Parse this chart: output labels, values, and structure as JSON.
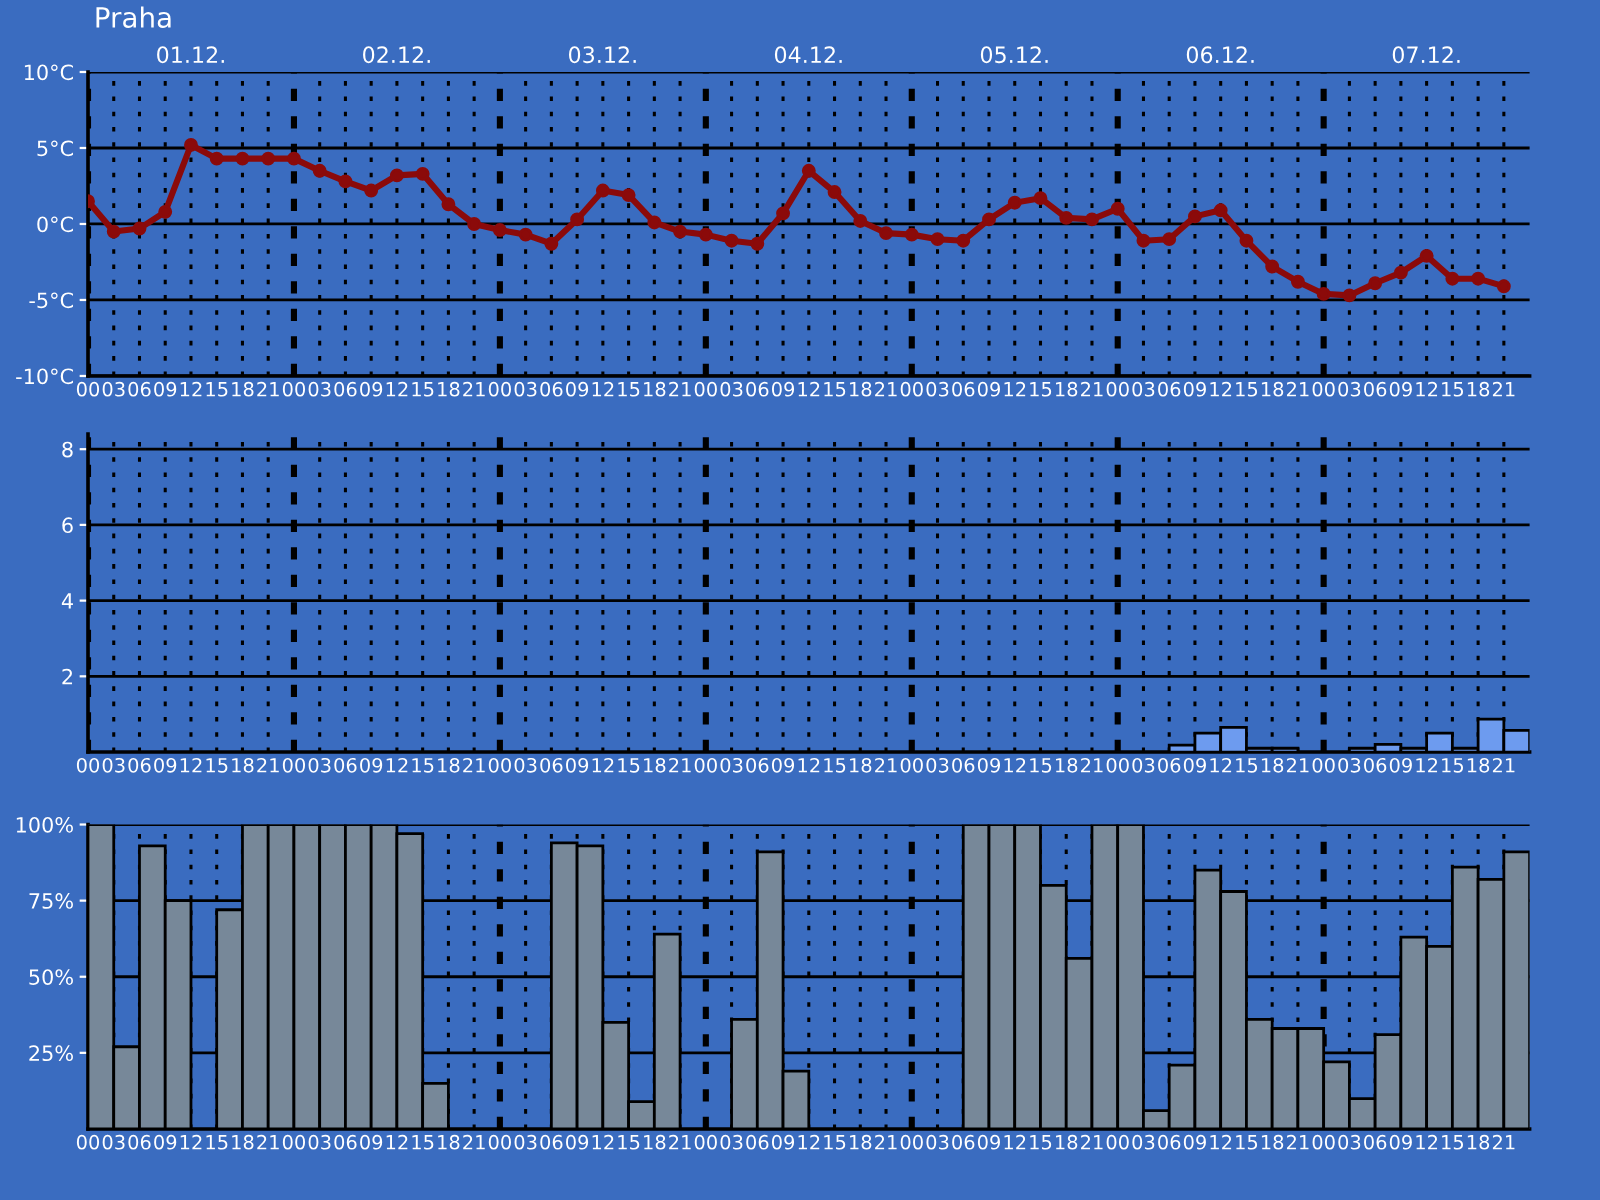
{
  "chart_data": [
    {
      "type": "line",
      "title": "Praha",
      "x": [
        0,
        3,
        6,
        9,
        12,
        15,
        18,
        21,
        24,
        27,
        30,
        33,
        36,
        39,
        42,
        45,
        48,
        51,
        54,
        57,
        60,
        63,
        66,
        69,
        72,
        75,
        78,
        81,
        84,
        87,
        90,
        93,
        96,
        99,
        102,
        105,
        108,
        111,
        114,
        117,
        120,
        123,
        126,
        129,
        132,
        135,
        138,
        141,
        144,
        147,
        150,
        153,
        156,
        159,
        162,
        165
      ],
      "series": [
        {
          "color": "#8b0a0a",
          "values": [
            1.5,
            -0.5,
            -0.3,
            0.8,
            5.2,
            4.3,
            4.3,
            4.3,
            4.3,
            3.5,
            2.8,
            2.2,
            3.2,
            3.3,
            1.3,
            0.0,
            -0.4,
            -0.7,
            -1.3,
            0.3,
            2.2,
            1.9,
            0.1,
            -0.5,
            -0.7,
            -1.1,
            -1.3,
            0.7,
            3.5,
            2.1,
            0.2,
            -0.6,
            -0.7,
            -1.0,
            -1.1,
            0.3,
            1.4,
            1.7,
            0.4,
            0.3,
            1.0,
            -1.1,
            -1.0,
            0.5,
            0.9,
            -1.1,
            -2.8,
            -3.8,
            -4.6,
            -4.7,
            -3.9,
            -3.2,
            -2.1,
            -3.6,
            -3.6,
            -4.1
          ]
        }
      ],
      "marker": "circle",
      "line_style": "solid",
      "grid": true,
      "xlim": [
        0,
        168
      ],
      "xticks": [
        {
          "value": 0,
          "label": "00"
        },
        {
          "value": 3,
          "label": "03"
        },
        {
          "value": 6,
          "label": "06"
        },
        {
          "value": 9,
          "label": "09"
        },
        {
          "value": 12,
          "label": "12"
        },
        {
          "value": 15,
          "label": "15"
        },
        {
          "value": 18,
          "label": "18"
        },
        {
          "value": 21,
          "label": "21"
        },
        {
          "value": 24,
          "label": "00"
        },
        {
          "value": 27,
          "label": "03"
        },
        {
          "value": 30,
          "label": "06"
        },
        {
          "value": 33,
          "label": "09"
        },
        {
          "value": 36,
          "label": "12"
        },
        {
          "value": 39,
          "label": "15"
        },
        {
          "value": 42,
          "label": "18"
        },
        {
          "value": 45,
          "label": "21"
        },
        {
          "value": 48,
          "label": "00"
        },
        {
          "value": 51,
          "label": "03"
        },
        {
          "value": 54,
          "label": "06"
        },
        {
          "value": 57,
          "label": "09"
        },
        {
          "value": 60,
          "label": "12"
        },
        {
          "value": 63,
          "label": "15"
        },
        {
          "value": 66,
          "label": "18"
        },
        {
          "value": 69,
          "label": "21"
        },
        {
          "value": 72,
          "label": "00"
        },
        {
          "value": 75,
          "label": "03"
        },
        {
          "value": 78,
          "label": "06"
        },
        {
          "value": 81,
          "label": "09"
        },
        {
          "value": 84,
          "label": "12"
        },
        {
          "value": 87,
          "label": "15"
        },
        {
          "value": 90,
          "label": "18"
        },
        {
          "value": 93,
          "label": "21"
        },
        {
          "value": 96,
          "label": "00"
        },
        {
          "value": 99,
          "label": "03"
        },
        {
          "value": 102,
          "label": "06"
        },
        {
          "value": 105,
          "label": "09"
        },
        {
          "value": 108,
          "label": "12"
        },
        {
          "value": 111,
          "label": "15"
        },
        {
          "value": 114,
          "label": "18"
        },
        {
          "value": 117,
          "label": "21"
        },
        {
          "value": 120,
          "label": "00"
        },
        {
          "value": 123,
          "label": "03"
        },
        {
          "value": 126,
          "label": "06"
        },
        {
          "value": 129,
          "label": "09"
        },
        {
          "value": 132,
          "label": "12"
        },
        {
          "value": 135,
          "label": "15"
        },
        {
          "value": 138,
          "label": "18"
        },
        {
          "value": 141,
          "label": "21"
        },
        {
          "value": 144,
          "label": "00"
        },
        {
          "value": 147,
          "label": "03"
        },
        {
          "value": 150,
          "label": "06"
        },
        {
          "value": 153,
          "label": "09"
        },
        {
          "value": 156,
          "label": "12"
        },
        {
          "value": 159,
          "label": "15"
        },
        {
          "value": 162,
          "label": "18"
        },
        {
          "value": 165,
          "label": "21"
        }
      ],
      "annotations": [
        "01.12.",
        "02.12.",
        "03.12.",
        "04.12.",
        "05.12.",
        "06.12.",
        "07.12."
      ],
      "ylim": [
        -10,
        10
      ],
      "yticks": [
        {
          "value": -10,
          "label": "-10°C"
        },
        {
          "value": -5,
          "label": "-5°C"
        },
        {
          "value": 0,
          "label": "0°C"
        },
        {
          "value": 5,
          "label": "5°C"
        },
        {
          "value": 10,
          "label": "10°C"
        }
      ]
    },
    {
      "type": "bar",
      "x": [
        1.5,
        4.5,
        7.5,
        10.5,
        13.5,
        16.5,
        19.5,
        22.5,
        25.5,
        28.5,
        31.5,
        34.5,
        37.5,
        40.5,
        43.5,
        46.5,
        49.5,
        52.5,
        55.5,
        58.5,
        61.5,
        64.5,
        67.5,
        70.5,
        73.5,
        76.5,
        79.5,
        82.5,
        85.5,
        88.5,
        91.5,
        94.5,
        97.5,
        100.5,
        103.5,
        106.5,
        109.5,
        112.5,
        115.5,
        118.5,
        121.5,
        124.5,
        127.5,
        130.5,
        133.5,
        136.5,
        139.5,
        142.5,
        145.5,
        148.5,
        151.5,
        154.5,
        157.5,
        160.5,
        163.5,
        166.5
      ],
      "series": [
        {
          "color": "#6d9bef",
          "values": [
            0,
            0,
            0,
            0,
            0,
            0,
            0,
            0,
            0,
            0,
            0,
            0,
            0,
            0,
            0,
            0,
            0,
            0,
            0,
            0,
            0,
            0,
            0,
            0,
            0,
            0,
            0,
            0,
            0,
            0,
            0,
            0,
            0,
            0,
            0,
            0,
            0,
            0,
            0,
            0,
            0,
            0,
            0.18,
            0.5,
            0.65,
            0.1,
            0.1,
            0,
            0,
            0.1,
            0.2,
            0.1,
            0.5,
            0.1,
            0.87,
            0.57
          ]
        }
      ],
      "grid": true,
      "xlim": [
        0,
        168
      ],
      "xticks": [
        {
          "value": 0,
          "label": "00"
        },
        {
          "value": 3,
          "label": "03"
        },
        {
          "value": 6,
          "label": "06"
        },
        {
          "value": 9,
          "label": "09"
        },
        {
          "value": 12,
          "label": "12"
        },
        {
          "value": 15,
          "label": "15"
        },
        {
          "value": 18,
          "label": "18"
        },
        {
          "value": 21,
          "label": "21"
        },
        {
          "value": 24,
          "label": "00"
        },
        {
          "value": 27,
          "label": "03"
        },
        {
          "value": 30,
          "label": "06"
        },
        {
          "value": 33,
          "label": "09"
        },
        {
          "value": 36,
          "label": "12"
        },
        {
          "value": 39,
          "label": "15"
        },
        {
          "value": 42,
          "label": "18"
        },
        {
          "value": 45,
          "label": "21"
        },
        {
          "value": 48,
          "label": "00"
        },
        {
          "value": 51,
          "label": "03"
        },
        {
          "value": 54,
          "label": "06"
        },
        {
          "value": 57,
          "label": "09"
        },
        {
          "value": 60,
          "label": "12"
        },
        {
          "value": 63,
          "label": "15"
        },
        {
          "value": 66,
          "label": "18"
        },
        {
          "value": 69,
          "label": "21"
        },
        {
          "value": 72,
          "label": "00"
        },
        {
          "value": 75,
          "label": "03"
        },
        {
          "value": 78,
          "label": "06"
        },
        {
          "value": 81,
          "label": "09"
        },
        {
          "value": 84,
          "label": "12"
        },
        {
          "value": 87,
          "label": "15"
        },
        {
          "value": 90,
          "label": "18"
        },
        {
          "value": 93,
          "label": "21"
        },
        {
          "value": 96,
          "label": "00"
        },
        {
          "value": 99,
          "label": "03"
        },
        {
          "value": 102,
          "label": "06"
        },
        {
          "value": 105,
          "label": "09"
        },
        {
          "value": 108,
          "label": "12"
        },
        {
          "value": 111,
          "label": "15"
        },
        {
          "value": 114,
          "label": "18"
        },
        {
          "value": 117,
          "label": "21"
        },
        {
          "value": 120,
          "label": "00"
        },
        {
          "value": 123,
          "label": "03"
        },
        {
          "value": 126,
          "label": "06"
        },
        {
          "value": 129,
          "label": "09"
        },
        {
          "value": 132,
          "label": "12"
        },
        {
          "value": 135,
          "label": "15"
        },
        {
          "value": 138,
          "label": "18"
        },
        {
          "value": 141,
          "label": "21"
        },
        {
          "value": 144,
          "label": "00"
        },
        {
          "value": 147,
          "label": "03"
        },
        {
          "value": 150,
          "label": "06"
        },
        {
          "value": 153,
          "label": "09"
        },
        {
          "value": 156,
          "label": "12"
        },
        {
          "value": 159,
          "label": "15"
        },
        {
          "value": 162,
          "label": "18"
        },
        {
          "value": 165,
          "label": "21"
        }
      ],
      "ylim": [
        0,
        8.4
      ],
      "yticks": [
        2,
        4,
        6,
        8
      ]
    },
    {
      "type": "bar",
      "x": [
        1.5,
        4.5,
        7.5,
        10.5,
        13.5,
        16.5,
        19.5,
        22.5,
        25.5,
        28.5,
        31.5,
        34.5,
        37.5,
        40.5,
        43.5,
        46.5,
        49.5,
        52.5,
        55.5,
        58.5,
        61.5,
        64.5,
        67.5,
        70.5,
        73.5,
        76.5,
        79.5,
        82.5,
        85.5,
        88.5,
        91.5,
        94.5,
        97.5,
        100.5,
        103.5,
        106.5,
        109.5,
        112.5,
        115.5,
        118.5,
        121.5,
        124.5,
        127.5,
        130.5,
        133.5,
        136.5,
        139.5,
        142.5,
        145.5,
        148.5,
        151.5,
        154.5,
        157.5,
        160.5,
        163.5,
        166.5
      ],
      "series": [
        {
          "color": "#778899",
          "values": [
            100,
            27,
            93,
            75,
            0,
            72,
            100,
            100,
            100,
            100,
            100,
            100,
            97,
            15,
            0,
            0,
            0,
            0,
            94,
            93,
            35,
            9,
            64,
            0,
            0,
            36,
            91,
            19,
            0,
            0,
            0,
            0,
            0,
            0,
            100,
            100,
            100,
            80,
            56,
            100,
            100,
            6,
            21,
            85,
            78,
            36,
            33,
            33,
            22,
            10,
            31,
            63,
            60,
            86,
            82,
            91
          ]
        }
      ],
      "grid": true,
      "xlim": [
        0,
        168
      ],
      "xticks": [
        {
          "value": 0,
          "label": "00"
        },
        {
          "value": 3,
          "label": "03"
        },
        {
          "value": 6,
          "label": "06"
        },
        {
          "value": 9,
          "label": "09"
        },
        {
          "value": 12,
          "label": "12"
        },
        {
          "value": 15,
          "label": "15"
        },
        {
          "value": 18,
          "label": "18"
        },
        {
          "value": 21,
          "label": "21"
        },
        {
          "value": 24,
          "label": "00"
        },
        {
          "value": 27,
          "label": "03"
        },
        {
          "value": 30,
          "label": "06"
        },
        {
          "value": 33,
          "label": "09"
        },
        {
          "value": 36,
          "label": "12"
        },
        {
          "value": 39,
          "label": "15"
        },
        {
          "value": 42,
          "label": "18"
        },
        {
          "value": 45,
          "label": "21"
        },
        {
          "value": 48,
          "label": "00"
        },
        {
          "value": 51,
          "label": "03"
        },
        {
          "value": 54,
          "label": "06"
        },
        {
          "value": 57,
          "label": "09"
        },
        {
          "value": 60,
          "label": "12"
        },
        {
          "value": 63,
          "label": "15"
        },
        {
          "value": 66,
          "label": "18"
        },
        {
          "value": 69,
          "label": "21"
        },
        {
          "value": 72,
          "label": "00"
        },
        {
          "value": 75,
          "label": "03"
        },
        {
          "value": 78,
          "label": "06"
        },
        {
          "value": 81,
          "label": "09"
        },
        {
          "value": 84,
          "label": "12"
        },
        {
          "value": 87,
          "label": "15"
        },
        {
          "value": 90,
          "label": "18"
        },
        {
          "value": 93,
          "label": "21"
        },
        {
          "value": 96,
          "label": "00"
        },
        {
          "value": 99,
          "label": "03"
        },
        {
          "value": 102,
          "label": "06"
        },
        {
          "value": 105,
          "label": "09"
        },
        {
          "value": 108,
          "label": "12"
        },
        {
          "value": 111,
          "label": "15"
        },
        {
          "value": 114,
          "label": "18"
        },
        {
          "value": 117,
          "label": "21"
        },
        {
          "value": 120,
          "label": "00"
        },
        {
          "value": 123,
          "label": "03"
        },
        {
          "value": 126,
          "label": "06"
        },
        {
          "value": 129,
          "label": "09"
        },
        {
          "value": 132,
          "label": "12"
        },
        {
          "value": 135,
          "label": "15"
        },
        {
          "value": 138,
          "label": "18"
        },
        {
          "value": 141,
          "label": "21"
        },
        {
          "value": 144,
          "label": "00"
        },
        {
          "value": 147,
          "label": "03"
        },
        {
          "value": 150,
          "label": "06"
        },
        {
          "value": 153,
          "label": "09"
        },
        {
          "value": 156,
          "label": "12"
        },
        {
          "value": 159,
          "label": "15"
        },
        {
          "value": 162,
          "label": "18"
        },
        {
          "value": 165,
          "label": "21"
        }
      ],
      "ylim": [
        0,
        100
      ],
      "yticks": [
        {
          "value": 25,
          "label": "25%"
        },
        {
          "value": 50,
          "label": "50%"
        },
        {
          "value": 75,
          "label": "75%"
        },
        {
          "value": 100,
          "label": "100%"
        }
      ]
    }
  ]
}
